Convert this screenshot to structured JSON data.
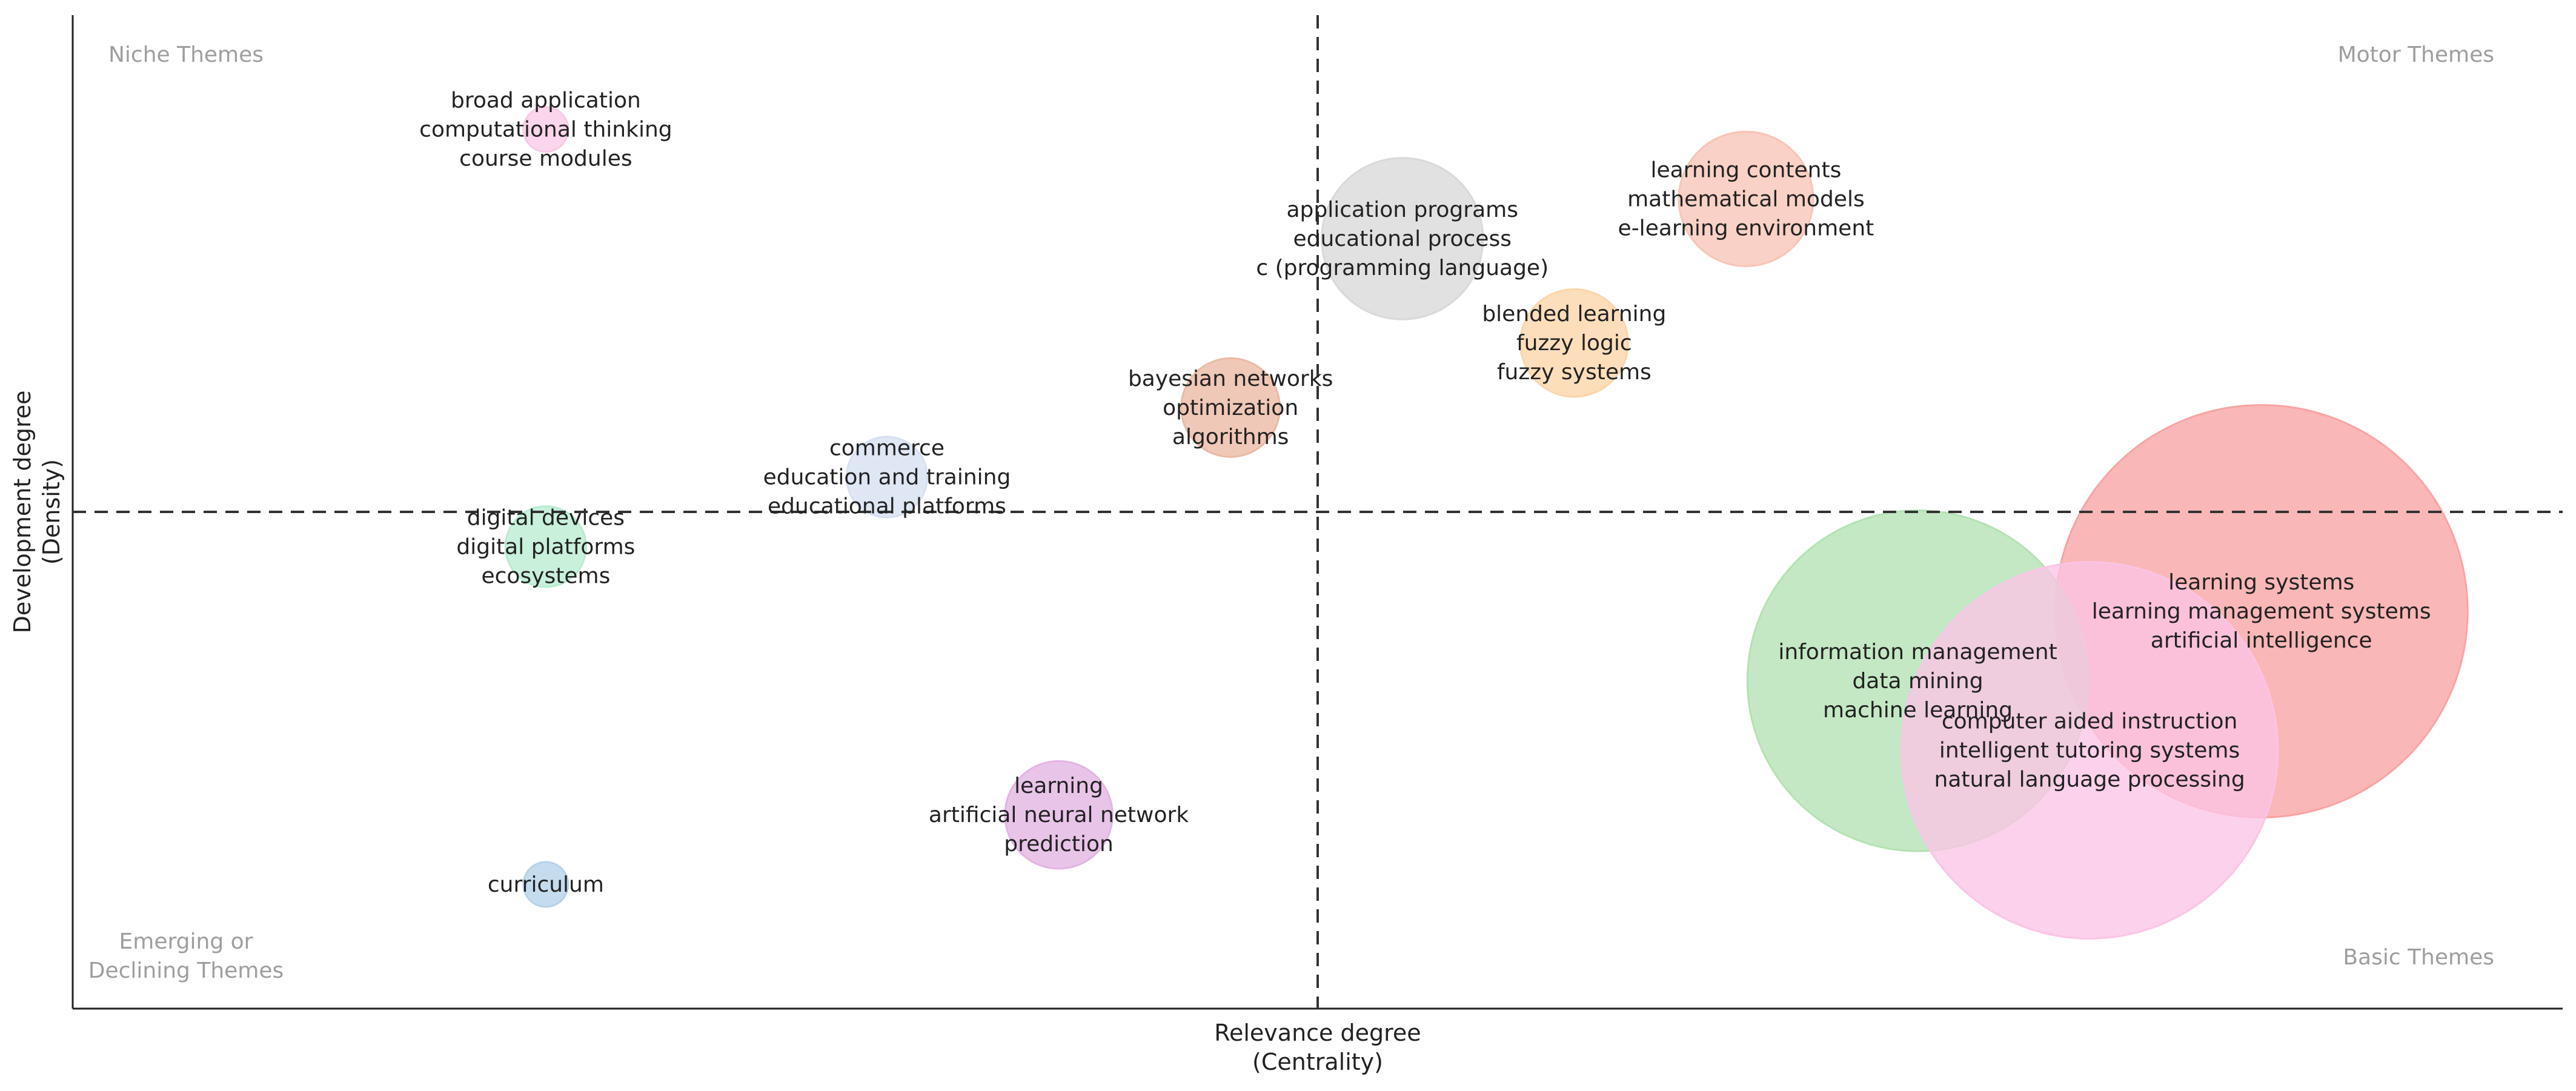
{
  "chart_data": {
    "type": "scatter",
    "subtype": "thematic-map-bubble",
    "xlabel": [
      "Relevance degree",
      "(Centrality)"
    ],
    "ylabel": [
      "Development degree",
      "(Density)"
    ],
    "xlim": [
      0,
      10
    ],
    "ylim": [
      0,
      10
    ],
    "x_divider": 5.0,
    "y_divider": 5.0,
    "grid": false,
    "quadrants": {
      "top_left": [
        "Niche Themes"
      ],
      "top_right": [
        "Motor Themes"
      ],
      "bottom_left": [
        "Emerging or",
        "Declining Themes"
      ],
      "bottom_right": [
        "Basic Themes"
      ]
    },
    "points": [
      {
        "labels": [
          "broad application",
          "computational thinking",
          "course modules"
        ],
        "x": 1.9,
        "y": 8.85,
        "size": 0.25,
        "color": "#f9c9e6"
      },
      {
        "labels": [
          "learning contents",
          "mathematical models",
          "e-learning environment"
        ],
        "x": 6.72,
        "y": 8.15,
        "size": 0.75,
        "color": "#f9c4b6"
      },
      {
        "labels": [
          "application programs",
          "educational process",
          "c (programming language)"
        ],
        "x": 5.34,
        "y": 7.75,
        "size": 0.9,
        "color": "#d9d9d9"
      },
      {
        "labels": [
          "blended learning",
          "fuzzy logic",
          "fuzzy systems"
        ],
        "x": 6.03,
        "y": 6.7,
        "size": 0.6,
        "color": "#fdd5a8"
      },
      {
        "labels": [
          "bayesian networks",
          "optimization",
          "algorithms"
        ],
        "x": 4.65,
        "y": 6.05,
        "size": 0.55,
        "color": "#ecb9a3"
      },
      {
        "labels": [
          "commerce",
          "education and training",
          "educational platforms"
        ],
        "x": 3.27,
        "y": 5.35,
        "size": 0.45,
        "color": "#d6e0f1"
      },
      {
        "labels": [
          "digital devices",
          "digital platforms",
          "ecosystems"
        ],
        "x": 1.9,
        "y": 4.65,
        "size": 0.45,
        "color": "#b8ecd1"
      },
      {
        "labels": [
          "learning systems",
          "learning management systems",
          "artificial intelligence"
        ],
        "x": 8.79,
        "y": 4.0,
        "size": 2.3,
        "color": "#f9a3a3"
      },
      {
        "labels": [
          "information management",
          "data mining",
          "machine learning"
        ],
        "x": 7.41,
        "y": 3.3,
        "size": 1.9,
        "color": "#b3e2b3"
      },
      {
        "labels": [
          "computer aided instruction",
          "intelligent tutoring systems",
          "natural language processing"
        ],
        "x": 8.1,
        "y": 2.6,
        "size": 2.1,
        "color": "#fbc4e6"
      },
      {
        "labels": [
          "learning",
          "artificial neural network",
          "prediction"
        ],
        "x": 3.96,
        "y": 1.95,
        "size": 0.6,
        "color": "#e3b4e3"
      },
      {
        "labels": [
          "curriculum"
        ],
        "x": 1.9,
        "y": 1.25,
        "size": 0.25,
        "color": "#b5d2ea"
      }
    ]
  }
}
